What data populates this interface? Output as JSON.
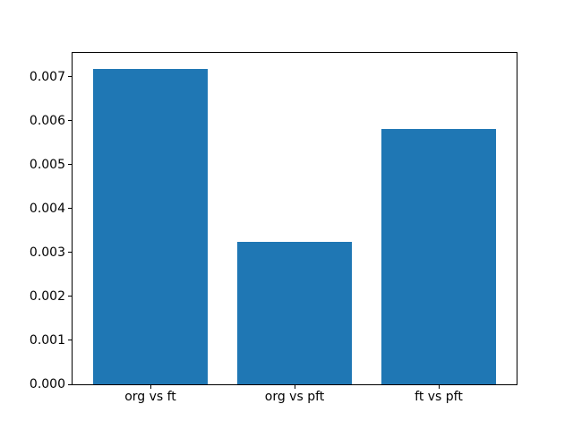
{
  "chart_data": {
    "type": "bar",
    "title": "",
    "xlabel": "",
    "ylabel": "",
    "categories": [
      "org vs ft",
      "org vs pft",
      "ft vs pft"
    ],
    "values": [
      0.00718,
      0.00324,
      0.00581
    ],
    "bar_color": "#1f77b4",
    "bar_width_fraction": 0.8,
    "ylim": [
      0,
      0.00754
    ],
    "yticks": [
      0,
      0.001,
      0.002,
      0.003,
      0.004,
      0.005,
      0.006,
      0.007
    ],
    "ytick_labels": [
      "0.000",
      "0.001",
      "0.002",
      "0.003",
      "0.004",
      "0.005",
      "0.006",
      "0.007"
    ],
    "grid": false,
    "legend": null,
    "spine_color": "#000000",
    "background_color": "#ffffff"
  }
}
